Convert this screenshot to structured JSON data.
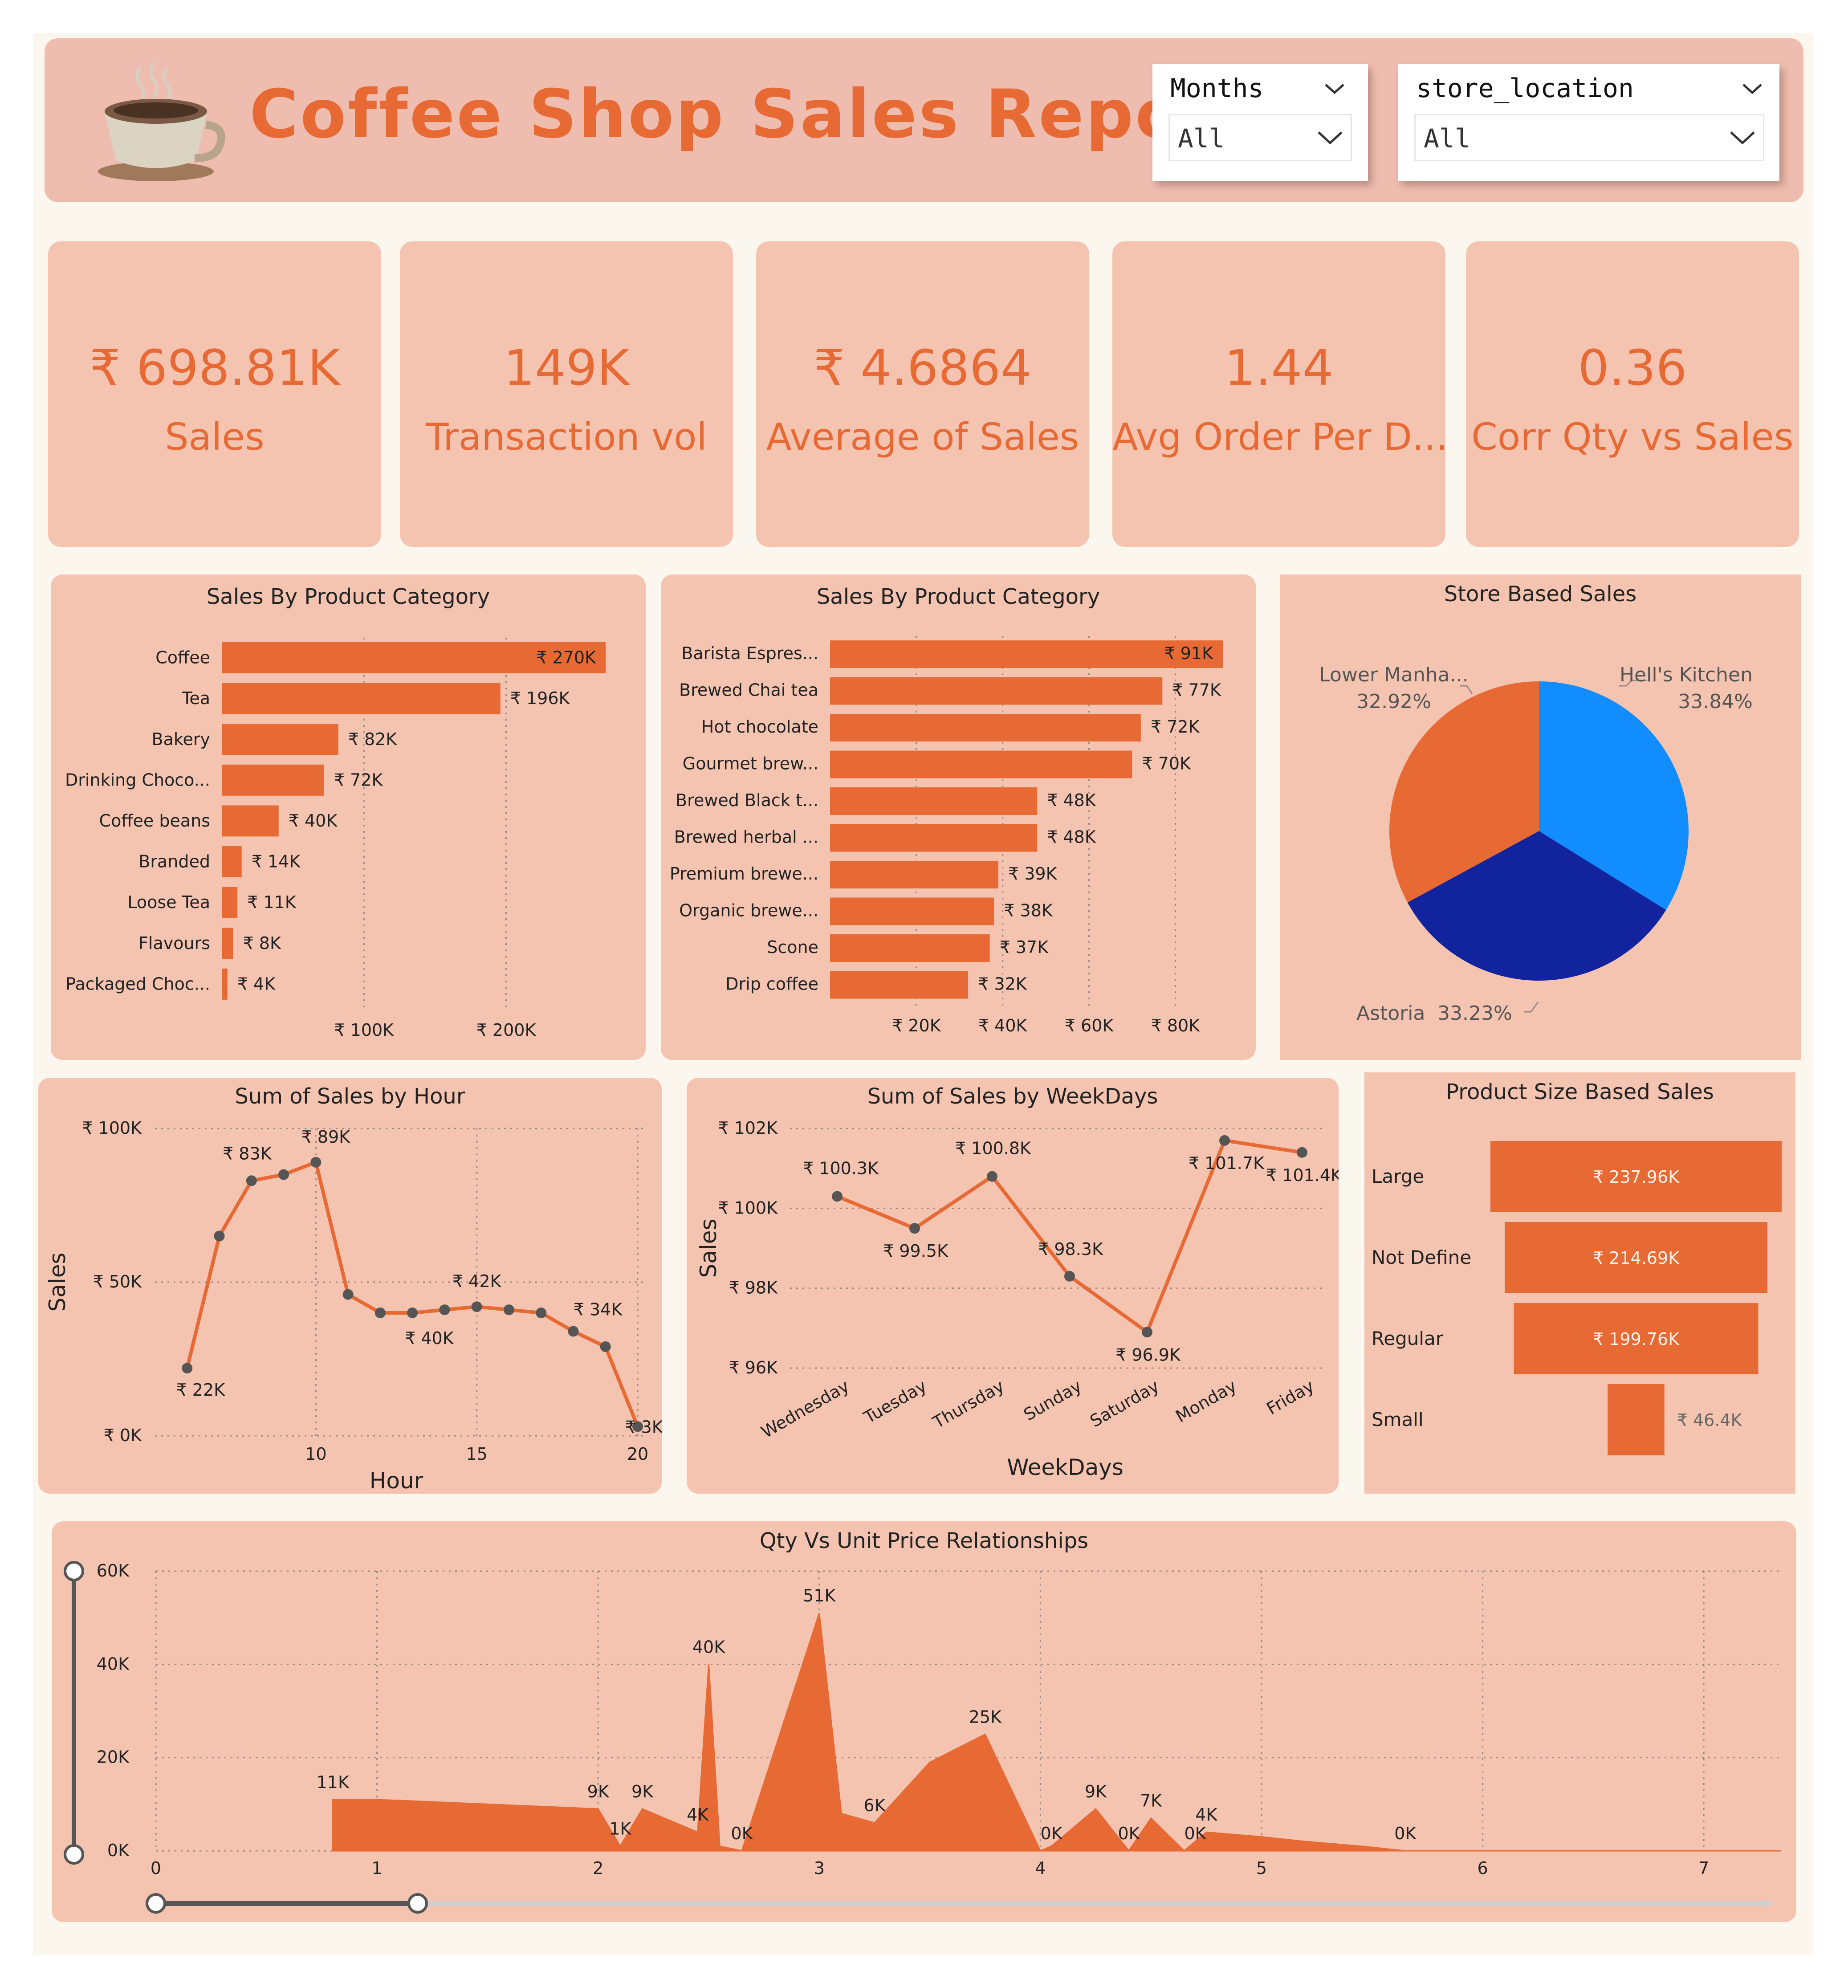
{
  "header": {
    "title": "Coffee Shop Sales Report",
    "filters": [
      {
        "label": "Months",
        "value": "All"
      },
      {
        "label": "store_location",
        "value": "All"
      }
    ]
  },
  "kpis": [
    {
      "value": "₹ 698.81K",
      "label": "Sales"
    },
    {
      "value": "149K",
      "label": "Transaction vol"
    },
    {
      "value": "₹ 4.6864",
      "label": "Average of Sales"
    },
    {
      "value": "1.44",
      "label": "Avg Order Per D..."
    },
    {
      "value": "0.36",
      "label": "Corr Qty vs Sales"
    }
  ],
  "colors": {
    "accent": "#e76a35",
    "panel": "#f4c4b1",
    "pie_light": "#118dff",
    "pie_dark": "#12239e"
  },
  "chart_data": [
    {
      "id": "category",
      "type": "bar",
      "title": "Sales By Product Category",
      "categories": [
        "Coffee",
        "Tea",
        "Bakery",
        "Drinking Choco...",
        "Coffee beans",
        "Branded",
        "Loose Tea",
        "Flavours",
        "Packaged Choc..."
      ],
      "values": [
        270000,
        196000,
        82000,
        72000,
        40000,
        14000,
        11000,
        8000,
        4000
      ],
      "labels": [
        "₹ 270K",
        "₹ 196K",
        "₹ 82K",
        "₹ 72K",
        "₹ 40K",
        "₹ 14K",
        "₹ 11K",
        "₹ 8K",
        "₹ 4K"
      ],
      "xticks": [
        {
          "v": 100000,
          "t": "₹ 100K"
        },
        {
          "v": 200000,
          "t": "₹ 200K"
        }
      ],
      "xlim": [
        0,
        270000
      ]
    },
    {
      "id": "product",
      "type": "bar",
      "title": "Sales By Product Category",
      "categories": [
        "Barista Espres...",
        "Brewed Chai tea",
        "Hot chocolate",
        "Gourmet brew...",
        "Brewed Black t...",
        "Brewed herbal ...",
        "Premium brewe...",
        "Organic brewe...",
        "Scone",
        "Drip coffee"
      ],
      "values": [
        91000,
        77000,
        72000,
        70000,
        48000,
        48000,
        39000,
        38000,
        37000,
        32000
      ],
      "labels": [
        "₹ 91K",
        "₹ 77K",
        "₹ 72K",
        "₹ 70K",
        "₹ 48K",
        "₹ 48K",
        "₹ 39K",
        "₹ 38K",
        "₹ 37K",
        "₹ 32K"
      ],
      "xticks": [
        {
          "v": 20000,
          "t": "₹ 20K"
        },
        {
          "v": 40000,
          "t": "₹ 40K"
        },
        {
          "v": 60000,
          "t": "₹ 60K"
        },
        {
          "v": 80000,
          "t": "₹ 80K"
        }
      ],
      "xlim": [
        0,
        91000
      ]
    },
    {
      "id": "store",
      "type": "pie",
      "title": "Store Based Sales",
      "slices": [
        {
          "name": "Hell's Kitchen",
          "pct": "33.84%",
          "value": 33.84,
          "color": "#118dff"
        },
        {
          "name": "Astoria",
          "pct": "33.23%",
          "value": 33.23,
          "color": "#12239e"
        },
        {
          "name": "Lower Manha...",
          "pct": "32.92%",
          "value": 32.92,
          "color": "#e76a35"
        }
      ]
    },
    {
      "id": "hour",
      "type": "line",
      "title": "Sum of Sales by Hour",
      "xlabel": "Hour",
      "ylabel": "Sales",
      "x": [
        6,
        7,
        8,
        9,
        10,
        11,
        12,
        13,
        14,
        15,
        16,
        17,
        18,
        19,
        20
      ],
      "y": [
        22000,
        65000,
        83000,
        85000,
        89000,
        46000,
        40000,
        40000,
        41000,
        42000,
        41000,
        40000,
        34000,
        29000,
        3000
      ],
      "point_labels": [
        {
          "i": 0,
          "t": "₹ 22K"
        },
        {
          "i": 2,
          "t": "₹ 83K"
        },
        {
          "i": 4,
          "t": "₹ 89K"
        },
        {
          "i": 6,
          "t": "₹ 40K"
        },
        {
          "i": 9,
          "t": "₹ 42K"
        },
        {
          "i": 12,
          "t": "₹ 34K"
        },
        {
          "i": 14,
          "t": "₹ 3K"
        }
      ],
      "xticks": [
        10,
        15,
        20
      ],
      "yticks": [
        {
          "v": 0,
          "t": "₹ 0K"
        },
        {
          "v": 50000,
          "t": "₹ 50K"
        },
        {
          "v": 100000,
          "t": "₹ 100K"
        }
      ],
      "xlim": [
        5,
        20
      ],
      "ylim": [
        0,
        100000
      ]
    },
    {
      "id": "weekday",
      "type": "line",
      "title": "Sum of Sales by WeekDays",
      "xlabel": "WeekDays",
      "ylabel": "Sales",
      "categories": [
        "Wednesday",
        "Tuesday",
        "Thursday",
        "Sunday",
        "Saturday",
        "Monday",
        "Friday"
      ],
      "y": [
        100300,
        99500,
        100800,
        98300,
        96900,
        101700,
        101400
      ],
      "point_labels": [
        "₹ 100.3K",
        "₹ 99.5K",
        "₹ 100.8K",
        "₹ 98.3K",
        "₹ 96.9K",
        "₹ 101.7K",
        "₹ 101.4K"
      ],
      "yticks": [
        {
          "v": 96000,
          "t": "₹ 96K"
        },
        {
          "v": 98000,
          "t": "₹ 98K"
        },
        {
          "v": 100000,
          "t": "₹ 100K"
        },
        {
          "v": 102000,
          "t": "₹ 102K"
        }
      ],
      "ylim": [
        96000,
        102000
      ]
    },
    {
      "id": "size",
      "type": "bar",
      "title": "Product Size Based Sales",
      "categories": [
        "Large",
        "Not Define",
        "Regular",
        "Small"
      ],
      "values": [
        237960,
        214690,
        199760,
        46400
      ],
      "labels": [
        "₹ 237.96K",
        "₹ 214.69K",
        "₹ 199.76K",
        "₹ 46.4K"
      ]
    },
    {
      "id": "qty_price",
      "type": "area",
      "title": "Qty Vs Unit Price Relationships",
      "x": [
        0.8,
        1.0,
        2.0,
        2.1,
        2.2,
        2.45,
        2.5,
        2.55,
        2.65,
        3.0,
        3.1,
        3.25,
        3.5,
        3.75,
        4.0,
        4.05,
        4.25,
        4.4,
        4.5,
        4.65,
        4.75,
        5.0,
        5.2,
        5.45,
        5.65,
        6.0,
        6.5,
        7.0,
        7.35
      ],
      "y": [
        11000,
        11000,
        9000,
        1000,
        9000,
        4000,
        40000,
        1000,
        0,
        51000,
        8000,
        6000,
        19000,
        25000,
        0,
        1000,
        9000,
        0,
        7000,
        0,
        4000,
        3000,
        2000,
        1000,
        0,
        0,
        0,
        0,
        0
      ],
      "point_labels": [
        {
          "x": 0.8,
          "y": 11000,
          "t": "11K"
        },
        {
          "x": 2.0,
          "y": 9000,
          "t": "9K"
        },
        {
          "x": 2.1,
          "y": 1000,
          "t": "1K"
        },
        {
          "x": 2.2,
          "y": 9000,
          "t": "9K"
        },
        {
          "x": 2.45,
          "y": 4000,
          "t": "4K"
        },
        {
          "x": 2.5,
          "y": 40000,
          "t": "40K"
        },
        {
          "x": 2.65,
          "y": 0,
          "t": "0K"
        },
        {
          "x": 3.0,
          "y": 51000,
          "t": "51K"
        },
        {
          "x": 3.25,
          "y": 6000,
          "t": "6K"
        },
        {
          "x": 3.75,
          "y": 25000,
          "t": "25K"
        },
        {
          "x": 4.05,
          "y": 0,
          "t": "0K"
        },
        {
          "x": 4.25,
          "y": 9000,
          "t": "9K"
        },
        {
          "x": 4.4,
          "y": 0,
          "t": "0K"
        },
        {
          "x": 4.5,
          "y": 7000,
          "t": "7K"
        },
        {
          "x": 4.7,
          "y": 0,
          "t": "0K"
        },
        {
          "x": 4.75,
          "y": 4000,
          "t": "4K"
        },
        {
          "x": 5.65,
          "y": 0,
          "t": "0K"
        }
      ],
      "xticks": [
        0,
        1,
        2,
        3,
        4,
        5,
        6,
        7
      ],
      "yticks": [
        {
          "v": 0,
          "t": "0K"
        },
        {
          "v": 20000,
          "t": "20K"
        },
        {
          "v": 40000,
          "t": "40K"
        },
        {
          "v": 60000,
          "t": "60K"
        }
      ],
      "xlim": [
        0,
        7.35
      ],
      "ylim": [
        0,
        60000
      ]
    }
  ]
}
